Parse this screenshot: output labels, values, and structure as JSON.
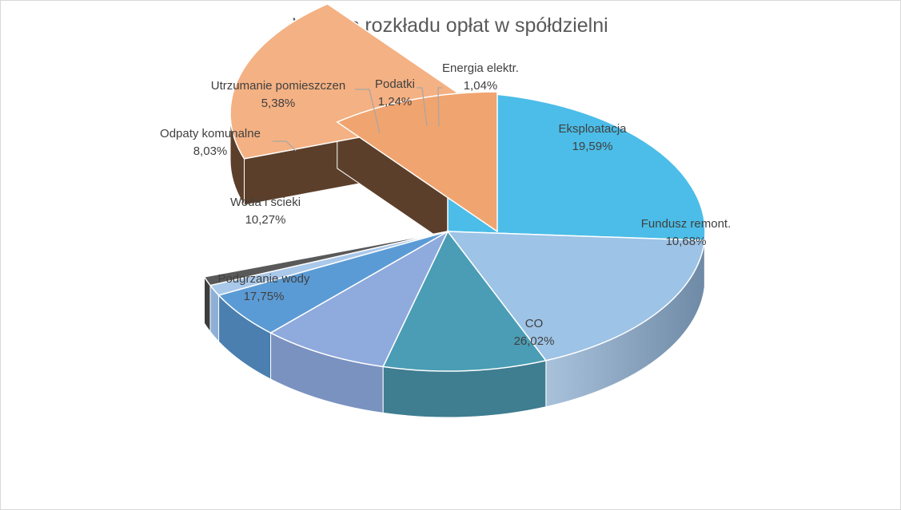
{
  "chart_data": {
    "type": "pie",
    "title": "Wykres rozkładu opłat w spółdzielni",
    "slices": [
      {
        "name": "CO",
        "value": 26.02,
        "label": "26,02%",
        "color": "#4bbde8"
      },
      {
        "name": "Podgrzanie wody",
        "value": 17.75,
        "label": "17,75%",
        "color": "#9dc3e6"
      },
      {
        "name": "Woda i ścieki",
        "value": 10.27,
        "label": "10,27%",
        "color": "#4a9db5"
      },
      {
        "name": "Odpaty komunalne",
        "value": 8.03,
        "label": "8,03%",
        "color": "#8faadc"
      },
      {
        "name": "Utrzumanie pomieszczen",
        "value": 5.38,
        "label": "5,38%",
        "color": "#5b9bd5"
      },
      {
        "name": "Podatki",
        "value": 1.24,
        "label": "1,24%",
        "color": "#a9c8ea"
      },
      {
        "name": "Energia elektr.",
        "value": 1.04,
        "label": "1,04%",
        "color": "#595959"
      },
      {
        "name": "Eksploatacja",
        "value": 19.59,
        "label": "19,59%",
        "color": "#f4b183",
        "exploded": true
      },
      {
        "name": "Fundusz remont.",
        "value": 10.68,
        "label": "10,68%",
        "color": "#f0a470",
        "exploded": true
      }
    ],
    "legend": "none"
  }
}
